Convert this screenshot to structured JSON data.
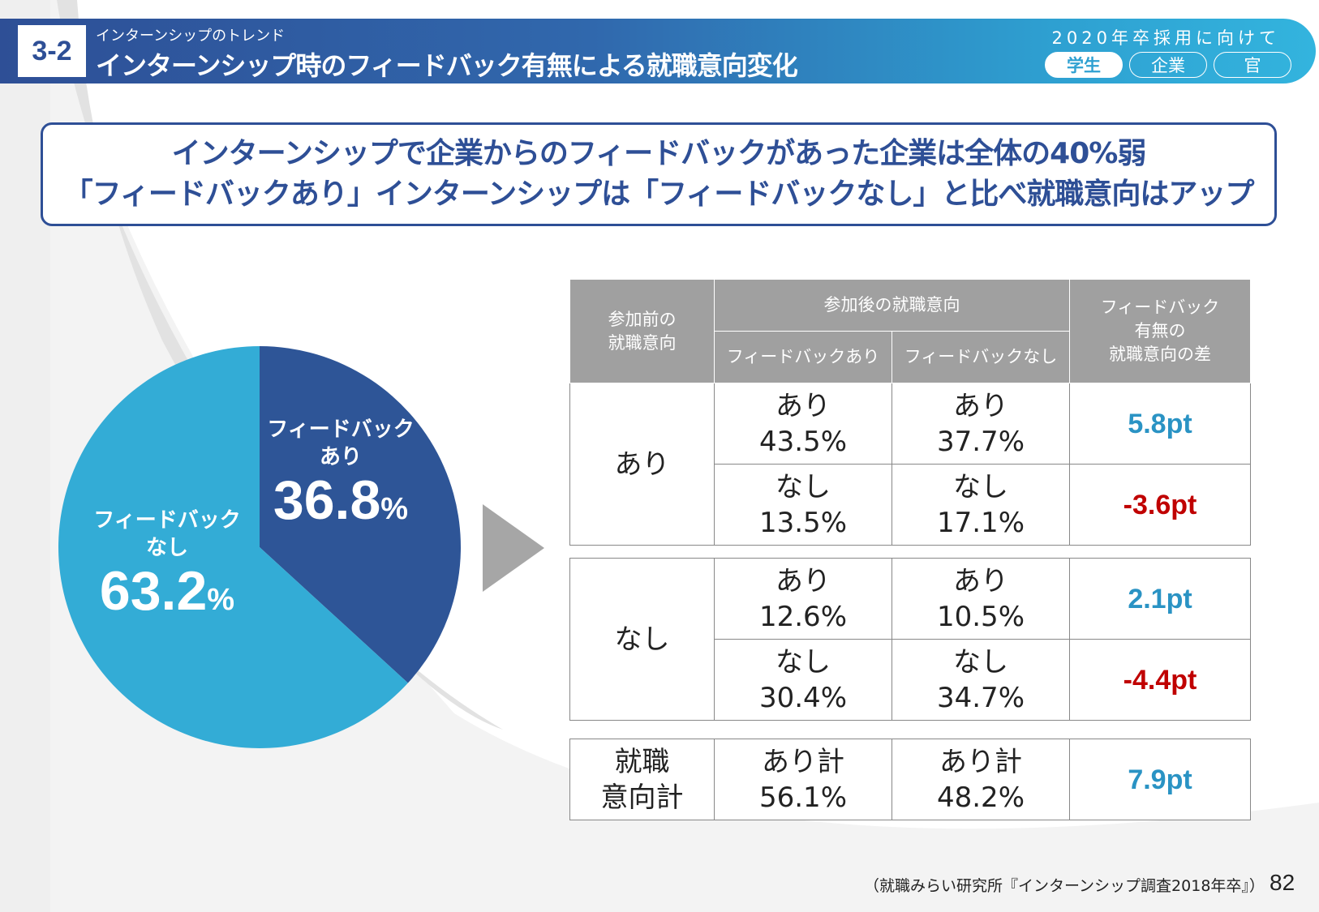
{
  "header": {
    "section_number": "3-2",
    "subtitle": "インターンシップのトレンド",
    "title": "インターンシップ時のフィードバック有無による就職意向変化",
    "right_label": "2020年卒採用に向けて",
    "audience_tabs": [
      {
        "label": "学生",
        "active": true
      },
      {
        "label": "企業",
        "active": false
      },
      {
        "label": "官",
        "active": false
      }
    ]
  },
  "headline": {
    "line1": "インターンシップで企業からのフィードバックがあった企業は全体の40%弱",
    "line2": "「フィードバックあり」インターンシップは「フィードバックなし」と比べ就職意向はアップ"
  },
  "colors": {
    "brand_dark": "#2e4f96",
    "brand_light": "#33aed8",
    "positive": "#2a93c4",
    "negative": "#c00000",
    "table_header": "#a0a0a0"
  },
  "chart_data": [
    {
      "type": "pie",
      "title": "",
      "slices": [
        {
          "label": "フィードバックあり",
          "label_lines": [
            "フィードバック",
            "あり"
          ],
          "value": 36.8,
          "value_text": "36.8",
          "color": "#2e5597"
        },
        {
          "label": "フィードバックなし",
          "label_lines": [
            "フィードバック",
            "なし"
          ],
          "value": 63.2,
          "value_text": "63.2",
          "color": "#33acd6"
        }
      ],
      "unit": "%",
      "start_angle_deg": 0,
      "direction": "clockwise"
    },
    {
      "type": "table",
      "headers": {
        "before": "参加前の就職意向",
        "before_lines": [
          "参加前の",
          "就職意向"
        ],
        "after_group": "参加後の就職意向",
        "after_with_fb": "フィードバックあり",
        "after_without_fb": "フィードバックなし",
        "diff": "フィードバック有無の就職意向の差",
        "diff_lines": [
          "フィードバック",
          "有無の",
          "就職意向の差"
        ]
      },
      "groups": [
        {
          "before": "あり",
          "rows": [
            {
              "after": "あり",
              "with_fb": "43.5%",
              "without_fb": "37.7%",
              "diff": "5.8pt",
              "sign": "pos"
            },
            {
              "after": "なし",
              "with_fb": "13.5%",
              "without_fb": "17.1%",
              "diff": "-3.6pt",
              "sign": "neg"
            }
          ]
        },
        {
          "before": "なし",
          "rows": [
            {
              "after": "あり",
              "with_fb": "12.6%",
              "without_fb": "10.5%",
              "diff": "2.1pt",
              "sign": "pos"
            },
            {
              "after": "なし",
              "with_fb": "30.4%",
              "without_fb": "34.7%",
              "diff": "-4.4pt",
              "sign": "neg"
            }
          ]
        }
      ],
      "total": {
        "label_lines": [
          "就職",
          "意向計"
        ],
        "with_fb_label": "あり計",
        "with_fb": "56.1%",
        "without_fb_label": "あり計",
        "without_fb": "48.2%",
        "diff": "7.9pt",
        "sign": "pos"
      }
    }
  ],
  "footer": {
    "source": "（就職みらい研究所『インターンシップ調査2018年卒』）",
    "page_number": "82"
  }
}
